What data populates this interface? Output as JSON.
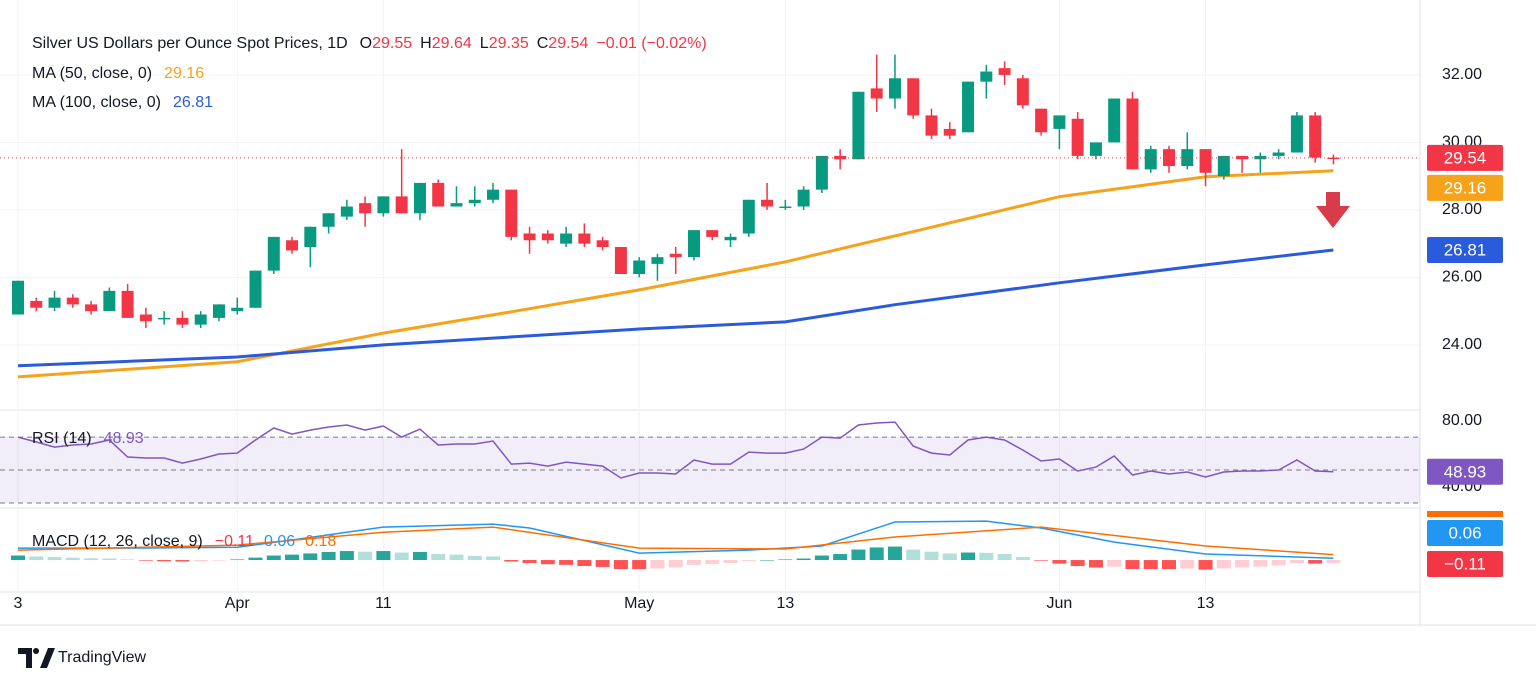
{
  "chart_data": {
    "type": "candlestick",
    "legend": {
      "title": "Silver US Dollars per Ounce Spot Prices, 1D",
      "ohlc": [
        {
          "key": "O",
          "value": "29.55"
        },
        {
          "key": "H",
          "value": "29.64"
        },
        {
          "key": "L",
          "value": "29.35"
        },
        {
          "key": "C",
          "value": "29.54"
        }
      ],
      "change": "−0.01 (−0.02%)"
    },
    "categories": [
      "3",
      null,
      null,
      null,
      null,
      null,
      null,
      null,
      null,
      null,
      null,
      null,
      "Apr",
      null,
      null,
      null,
      null,
      null,
      null,
      null,
      "11",
      null,
      null,
      null,
      null,
      null,
      null,
      null,
      null,
      null,
      null,
      null,
      null,
      null,
      "May",
      null,
      null,
      null,
      null,
      null,
      null,
      null,
      "13",
      null,
      null,
      null,
      null,
      null,
      null,
      null,
      null,
      null,
      null,
      null,
      null,
      null,
      null,
      "Jun",
      null,
      null,
      null,
      null,
      null,
      null,
      null,
      "13",
      null,
      null,
      null,
      null,
      null,
      null,
      null
    ],
    "open": [
      24.9,
      25.3,
      25.1,
      25.4,
      25.2,
      25.0,
      25.6,
      24.9,
      24.8,
      24.8,
      24.6,
      24.8,
      25.0,
      25.1,
      26.2,
      27.1,
      26.9,
      27.5,
      27.8,
      28.2,
      27.9,
      28.4,
      27.9,
      28.8,
      28.1,
      28.2,
      28.3,
      28.6,
      27.3,
      27.3,
      27.0,
      27.3,
      27.1,
      26.9,
      26.1,
      26.4,
      26.7,
      26.6,
      27.4,
      27.1,
      27.3,
      28.3,
      28.1,
      28.1,
      28.6,
      29.6,
      29.5,
      31.6,
      31.3,
      31.9,
      30.8,
      30.4,
      30.3,
      31.8,
      32.2,
      31.9,
      31.0,
      30.4,
      30.7,
      29.6,
      30.0,
      31.3,
      29.2,
      29.8,
      29.3,
      29.8,
      29.0,
      29.6,
      29.5,
      29.6,
      29.7,
      30.8,
      29.55
    ],
    "high": [
      25.9,
      25.4,
      25.6,
      25.5,
      25.3,
      25.7,
      25.8,
      25.1,
      25.0,
      25.0,
      25.0,
      25.2,
      25.4,
      26.2,
      27.2,
      27.2,
      27.5,
      27.9,
      28.3,
      28.4,
      28.4,
      29.8,
      28.8,
      28.9,
      28.7,
      28.7,
      28.8,
      28.6,
      27.5,
      27.4,
      27.5,
      27.6,
      27.2,
      26.9,
      26.6,
      26.7,
      26.9,
      27.4,
      27.4,
      27.3,
      28.3,
      28.8,
      28.3,
      28.7,
      29.6,
      29.8,
      31.5,
      32.6,
      32.6,
      31.9,
      31.0,
      30.6,
      31.8,
      32.3,
      32.4,
      32.0,
      31.0,
      30.8,
      30.9,
      30.0,
      31.3,
      31.5,
      29.9,
      29.9,
      30.3,
      29.8,
      29.6,
      29.6,
      29.7,
      29.8,
      30.9,
      30.9,
      29.64
    ],
    "low": [
      24.9,
      25.0,
      25.0,
      25.1,
      24.9,
      25.0,
      24.8,
      24.5,
      24.6,
      24.5,
      24.5,
      24.7,
      24.9,
      25.1,
      26.1,
      26.7,
      26.3,
      27.3,
      27.7,
      27.5,
      27.8,
      27.9,
      27.7,
      28.1,
      28.1,
      28.1,
      28.2,
      27.1,
      26.7,
      27.0,
      26.9,
      26.9,
      26.8,
      26.1,
      26.0,
      25.9,
      26.1,
      26.5,
      27.1,
      26.9,
      27.2,
      28.0,
      28.0,
      28.0,
      28.5,
      29.2,
      29.5,
      30.9,
      31.0,
      30.7,
      30.1,
      30.1,
      30.3,
      31.3,
      31.7,
      31.0,
      30.2,
      29.8,
      29.5,
      29.5,
      30.0,
      29.2,
      29.1,
      29.1,
      29.2,
      28.7,
      28.9,
      29.1,
      29.1,
      29.5,
      29.7,
      29.4,
      29.35
    ],
    "close": [
      25.9,
      25.1,
      25.4,
      25.2,
      25.0,
      25.6,
      24.8,
      24.7,
      24.8,
      24.6,
      24.9,
      25.2,
      25.1,
      26.2,
      27.2,
      26.8,
      27.5,
      27.9,
      28.1,
      27.9,
      28.4,
      27.9,
      28.8,
      28.1,
      28.2,
      28.3,
      28.6,
      27.2,
      27.1,
      27.1,
      27.3,
      27.0,
      26.9,
      26.1,
      26.5,
      26.6,
      26.6,
      27.4,
      27.2,
      27.2,
      28.3,
      28.1,
      28.1,
      28.6,
      29.6,
      29.5,
      31.5,
      31.3,
      31.9,
      30.8,
      30.2,
      30.2,
      31.8,
      32.1,
      32.0,
      31.1,
      30.3,
      30.8,
      29.6,
      30.0,
      31.3,
      29.2,
      29.8,
      29.3,
      29.8,
      29.1,
      29.6,
      29.5,
      29.6,
      29.7,
      30.8,
      29.55,
      29.54
    ],
    "up_color": "#089981",
    "down_color": "#f23645",
    "ylim": [
      22.07,
      34.22
    ],
    "yticks": [
      {
        "value": 24,
        "label": "24.00"
      },
      {
        "value": 26,
        "label": "26.00"
      },
      {
        "value": 28,
        "label": "28.00"
      },
      {
        "value": 30,
        "label": "30.00"
      },
      {
        "value": 32,
        "label": "32.00"
      }
    ],
    "grid": true,
    "ma_series": [
      {
        "name": "MA (50, close, 0)",
        "value_label": "29.16",
        "color": "#f7a21b",
        "x": [
          0,
          12,
          20,
          27,
          34,
          42,
          48,
          57,
          65,
          72
        ],
        "values": [
          23.05,
          23.5,
          24.35,
          24.98,
          25.63,
          26.46,
          27.23,
          28.39,
          28.98,
          29.16
        ]
      },
      {
        "name": "MA (100, close, 0)",
        "value_label": "26.81",
        "color": "#2a5bdc",
        "x": [
          0,
          12,
          20,
          34,
          42,
          48,
          57,
          65,
          72
        ],
        "values": [
          23.38,
          23.64,
          24.0,
          24.47,
          24.68,
          25.19,
          25.84,
          26.37,
          26.81
        ]
      }
    ],
    "rsi": {
      "name": "RSI (14)",
      "value_label": "48.93",
      "color": "#7e57c2",
      "values": [
        70,
        67.0,
        63.9,
        65.2,
        65.8,
        68.2,
        57.9,
        57.3,
        57.3,
        54.2,
        56.7,
        59.7,
        60.3,
        68.2,
        75.5,
        71.8,
        74.2,
        76.1,
        77.3,
        74.2,
        76.7,
        70,
        74.8,
        65.2,
        65.8,
        65.8,
        67.6,
        53.6,
        54.2,
        52.4,
        54.8,
        53.6,
        52.4,
        45.2,
        48.2,
        48.2,
        47.6,
        56.1,
        53.6,
        53.6,
        60.9,
        60.3,
        60.3,
        62.7,
        70,
        69.4,
        77.3,
        78.5,
        79.1,
        64.5,
        60.3,
        59.1,
        68.2,
        70,
        68.2,
        62.1,
        55.5,
        56.7,
        49.4,
        51.8,
        58.5,
        47.0,
        49.4,
        47.6,
        48.8,
        45.8,
        48.8,
        49.4,
        49.4,
        50.0,
        56.1,
        49.4,
        48.93
      ],
      "ylim": [
        28.8,
        85.2
      ],
      "yticks": [
        {
          "value": 80,
          "label": "80.00"
        },
        {
          "value": 40,
          "label": "40.00"
        }
      ],
      "bands": [
        70,
        50,
        30
      ]
    },
    "macd": {
      "name": "MACD (12, 26, close, 9)",
      "ylim": [
        -1.0,
        1.67
      ],
      "histogram": {
        "value_label": "−0.11",
        "colors": [
          "#26a69a",
          "#b2dfdb",
          "#ffcdd2",
          "#ff5252"
        ],
        "values": [
          0.15,
          0.12,
          0.1,
          0.08,
          0.06,
          0.05,
          0.02,
          -0.02,
          -0.04,
          -0.05,
          -0.04,
          -0.02,
          0.02,
          0.08,
          0.15,
          0.18,
          0.22,
          0.27,
          0.3,
          0.28,
          0.3,
          0.25,
          0.27,
          0.2,
          0.18,
          0.14,
          0.12,
          -0.05,
          -0.1,
          -0.14,
          -0.16,
          -0.2,
          -0.23,
          -0.3,
          -0.3,
          -0.28,
          -0.25,
          -0.16,
          -0.13,
          -0.1,
          -0.03,
          0.0,
          0.02,
          0.05,
          0.15,
          0.2,
          0.35,
          0.42,
          0.45,
          0.35,
          0.28,
          0.22,
          0.25,
          0.24,
          0.2,
          0.1,
          -0.02,
          -0.12,
          -0.2,
          -0.25,
          -0.22,
          -0.3,
          -0.3,
          -0.3,
          -0.28,
          -0.32,
          -0.28,
          -0.25,
          -0.22,
          -0.18,
          -0.1,
          -0.12,
          -0.11
        ]
      },
      "macd_line": {
        "value_label": "0.06",
        "color": "#2196f3",
        "x": [
          0,
          6,
          12,
          15,
          20,
          26,
          28,
          34,
          40,
          44,
          48,
          53,
          56,
          60,
          65,
          72
        ],
        "values": [
          0.4,
          0.4,
          0.43,
          0.67,
          1.1,
          1.2,
          1.07,
          0.23,
          0.33,
          0.47,
          1.27,
          1.3,
          1.07,
          0.6,
          0.2,
          0.06
        ]
      },
      "signal": {
        "value_label": "0.18",
        "color": "#ff6d00",
        "x": [
          0,
          12,
          20,
          26,
          34,
          42,
          48,
          56,
          65,
          72
        ],
        "values": [
          0.33,
          0.5,
          0.93,
          1.1,
          0.4,
          0.37,
          0.77,
          1.1,
          0.47,
          0.18
        ]
      }
    }
  },
  "footer": {
    "brand": "TradingView"
  }
}
